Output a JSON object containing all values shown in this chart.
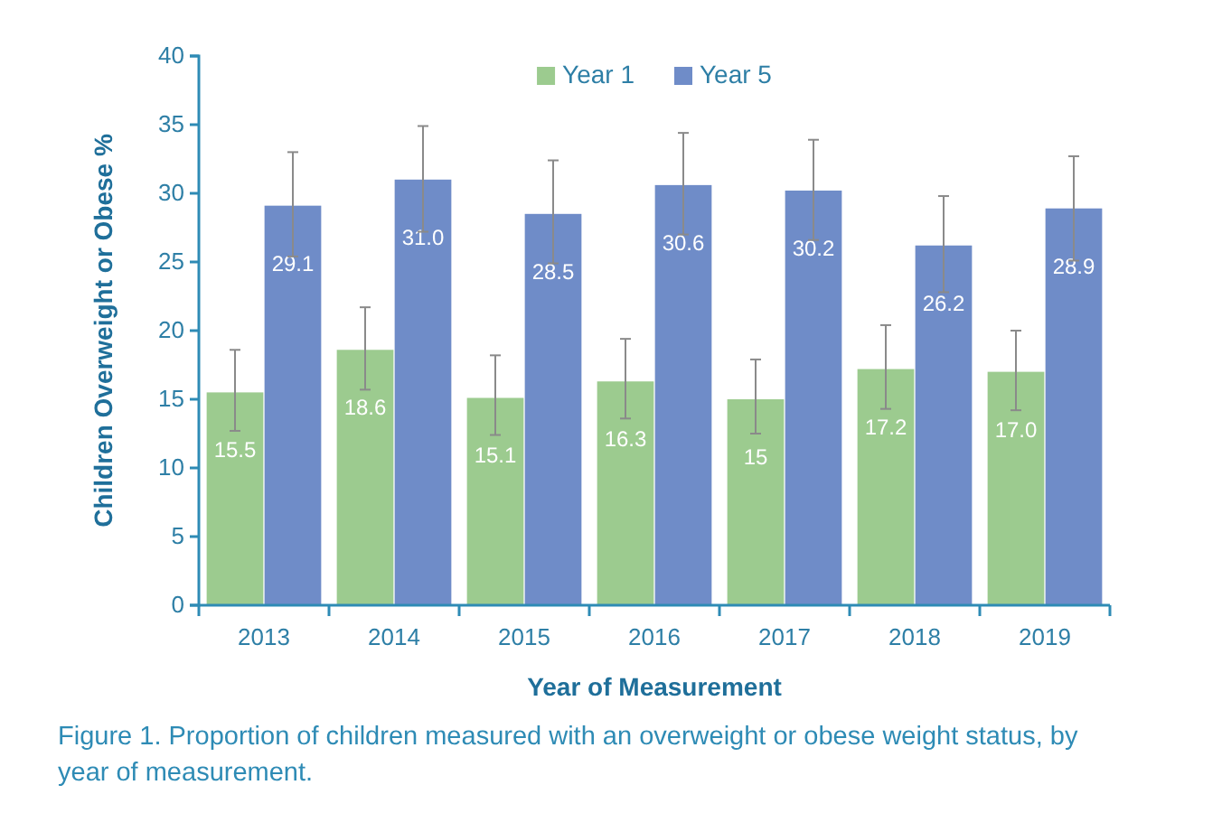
{
  "chart_data": {
    "type": "bar",
    "xlabel": "Year of Measurement",
    "ylabel": "Children Overweight or Obese %",
    "categories": [
      "2013",
      "2014",
      "2015",
      "2016",
      "2017",
      "2018",
      "2019"
    ],
    "series": [
      {
        "name": "Year 1",
        "color": "#9ccb8f",
        "values": [
          15.5,
          18.6,
          15.1,
          16.3,
          15,
          17.2,
          17.0
        ],
        "value_labels": [
          "15.5",
          "18.6",
          "15.1",
          "16.3",
          "15",
          "17.2",
          "17.0"
        ],
        "errors": [
          [
            12.7,
            18.6
          ],
          [
            15.7,
            21.7
          ],
          [
            12.4,
            18.2
          ],
          [
            13.6,
            19.4
          ],
          [
            12.5,
            17.9
          ],
          [
            14.3,
            20.4
          ],
          [
            14.2,
            20.0
          ]
        ]
      },
      {
        "name": "Year 5",
        "color": "#6f8cc8",
        "values": [
          29.1,
          31.0,
          28.5,
          30.6,
          30.2,
          26.2,
          28.9
        ],
        "value_labels": [
          "29.1",
          "31.0",
          "28.5",
          "30.6",
          "30.2",
          "26.2",
          "28.9"
        ],
        "errors": [
          [
            25.4,
            33.0
          ],
          [
            27.2,
            34.9
          ],
          [
            24.9,
            32.4
          ],
          [
            27.0,
            34.4
          ],
          [
            26.6,
            33.9
          ],
          [
            22.8,
            29.8
          ],
          [
            25.1,
            32.7
          ]
        ]
      }
    ],
    "ylim": [
      0,
      40
    ],
    "yticks": [
      0,
      5,
      10,
      15,
      20,
      25,
      30,
      35,
      40
    ],
    "grid": false,
    "legend": "top",
    "annotations": [
      "Figure 1.  Proportion of children measured with an overweight or obese weight status, by year of measurement."
    ]
  }
}
